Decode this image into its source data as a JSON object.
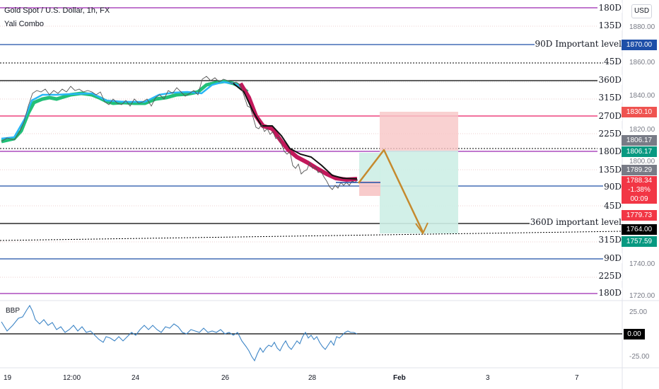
{
  "header": {
    "symbol_title": "Gold Spot / U.S. Dollar, 1h, FX",
    "indicator_name": "Yali Combo",
    "currency_button": "USD"
  },
  "level_labels": {
    "180_top": "180D",
    "135_top": "135D",
    "important_90": "90D Important level",
    "45_top": "45D",
    "360_top": "360D",
    "315_top": "315D",
    "270": "270D",
    "225_top": "225D",
    "180_mid": "180D",
    "135_mid": "135D",
    "90_mid": "90D",
    "45_mid": "45D",
    "important_360": "360D important level",
    "315_low": "315D",
    "90_low": "90D",
    "225_low": "225D",
    "180_low": "180D"
  },
  "price_axis": {
    "ticks": [
      "1880.00",
      "1860.00",
      "1840.00",
      "1820.00",
      "1800.00",
      "1740.00",
      "1720.00"
    ],
    "tags": {
      "level_1870": "1870.00",
      "level_1830": "1830.10",
      "level_1806a": "1806.17",
      "level_1806b": "1806.17",
      "level_1789": "1789.29",
      "current_price": "1788.34",
      "current_change": "-1.38%",
      "countdown": "00:09",
      "level_1779": "1779.73",
      "level_1764": "1764.00",
      "level_1757": "1757.59"
    },
    "colors": {
      "blue": "#2962ff",
      "pink": "#f23645",
      "teal": "#089981",
      "gray": "#787b86",
      "black": "#000000",
      "red": "#f23645"
    }
  },
  "oscillator": {
    "name": "BBP",
    "ticks": [
      "25.00",
      "0.00",
      "-25.00"
    ]
  },
  "time_axis": {
    "labels": [
      "19",
      "12:00",
      "24",
      "26",
      "28",
      "Feb",
      "3",
      "7"
    ]
  }
}
